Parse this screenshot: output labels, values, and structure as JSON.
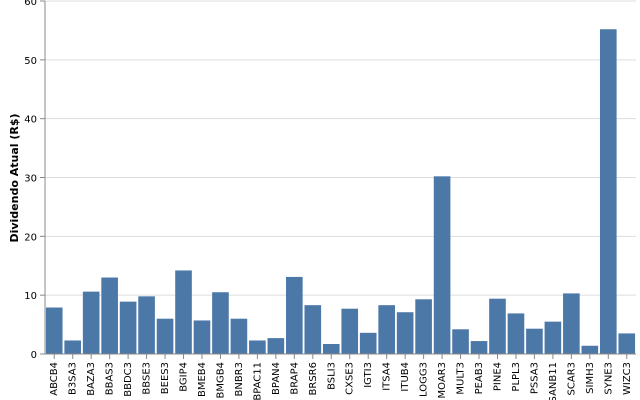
{
  "chart_data": {
    "type": "bar",
    "ylabel": "Dividendo Atual (R$)",
    "xlabel": "",
    "ylim": [
      0,
      60
    ],
    "yticks": [
      0,
      10,
      20,
      30,
      40,
      50,
      60
    ],
    "grid": true,
    "bar_color": "#4c78a8",
    "grid_color": "#dddddd",
    "axis_color": "#888888",
    "categories": [
      "ABCB4",
      "B3SA3",
      "BAZA3",
      "BBAS3",
      "BBDC3",
      "BBSE3",
      "BEES3",
      "BGIP4",
      "BMEB4",
      "BMGB4",
      "BNBR3",
      "BPAC11",
      "BPAN4",
      "BRAP4",
      "BRSR6",
      "BSLI3",
      "CXSE3",
      "IGTI3",
      "ITSA4",
      "ITUB4",
      "LOGG3",
      "MOAR3",
      "MULT3",
      "PEAB3",
      "PINE4",
      "PLPL3",
      "PSSA3",
      "SANB11",
      "SCAR3",
      "SIMH3",
      "SYNE3",
      "WIZC3"
    ],
    "values": [
      7.9,
      2.3,
      10.6,
      13.0,
      8.9,
      9.8,
      6.0,
      14.2,
      5.7,
      10.5,
      6.0,
      2.3,
      2.7,
      13.1,
      8.3,
      1.7,
      7.7,
      3.6,
      8.3,
      7.1,
      9.3,
      30.2,
      4.2,
      2.2,
      9.4,
      6.9,
      4.3,
      5.5,
      10.3,
      1.4,
      55.2,
      3.5
    ]
  }
}
